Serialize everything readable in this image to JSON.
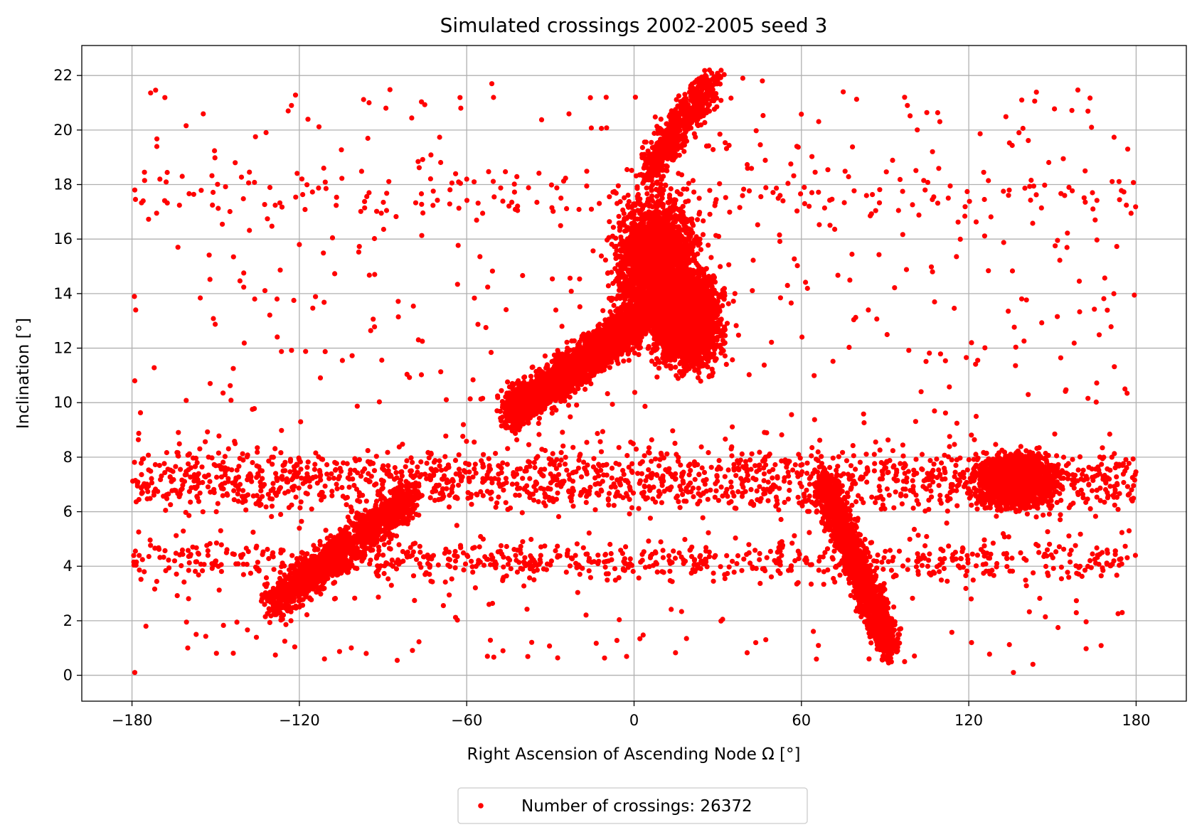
{
  "chart_data": {
    "type": "scatter",
    "title": "Simulated crossings  2002-2005 seed 3",
    "xlabel": "Right Ascension of Ascending Node Ω [°]",
    "ylabel": "Inclination [°]",
    "xlim": [
      -198,
      198
    ],
    "ylim": [
      -0.95,
      23.1
    ],
    "xticks": [
      -180,
      -120,
      -60,
      0,
      60,
      120,
      180
    ],
    "yticks": [
      0,
      2,
      4,
      6,
      8,
      10,
      12,
      14,
      16,
      18,
      20,
      22
    ],
    "xtick_labels": [
      "−180",
      "−120",
      "−60",
      "0",
      "60",
      "120",
      "180"
    ],
    "ytick_labels": [
      "0",
      "2",
      "4",
      "6",
      "8",
      "10",
      "12",
      "14",
      "16",
      "18",
      "20",
      "22"
    ],
    "grid": true,
    "marker_color": "#ff0000",
    "legend": {
      "position": "bottom-center",
      "label": "Number of crossings: 26372"
    },
    "series": [
      {
        "name": "Number of crossings: 26372",
        "color": "#ff0000",
        "note_total_count": 26372,
        "structures": [
          {
            "kind": "band",
            "x": [
              -180,
              180
            ],
            "y_center": 7.2,
            "y_spread": 0.9,
            "density": "high"
          },
          {
            "kind": "band",
            "x": [
              -180,
              180
            ],
            "y_center": 4.2,
            "y_spread": 0.6,
            "density": "medium"
          },
          {
            "kind": "band",
            "x": [
              -180,
              180
            ],
            "y_center": 17.6,
            "y_spread": 0.8,
            "density": "low"
          },
          {
            "kind": "arc",
            "from": [
              -130,
              2.6
            ],
            "to": [
              -80,
              6.5
            ],
            "density": "high"
          },
          {
            "kind": "arc",
            "from": [
              -45,
              9.6
            ],
            "to": [
              2,
              13.0
            ],
            "density": "very-high"
          },
          {
            "kind": "cluster",
            "x_center": 8,
            "y_center": 15.0,
            "x_spread": 12,
            "y_spread": 2.2,
            "density": "very-high"
          },
          {
            "kind": "cluster",
            "x_center": 20,
            "y_center": 13.0,
            "x_spread": 9,
            "y_spread": 1.4,
            "density": "very-high"
          },
          {
            "kind": "arc",
            "from": [
              5,
              18.5
            ],
            "to": [
              28,
              21.8
            ],
            "density": "medium"
          },
          {
            "kind": "arc",
            "from": [
              68,
              7.0
            ],
            "to": [
              92,
              1.0
            ],
            "density": "high"
          },
          {
            "kind": "cluster",
            "x_center": 137,
            "y_center": 7.1,
            "x_spread": 12,
            "y_spread": 0.8,
            "density": "high"
          }
        ],
        "sample_points": [
          [
            -179,
            0.1
          ],
          [
            -111,
            0.6
          ],
          [
            -47,
            0.9
          ],
          [
            97,
            0.5
          ],
          [
            136,
            0.1
          ],
          [
            143,
            0.4
          ],
          [
            -160,
            1.0
          ],
          [
            -157,
            1.5
          ],
          [
            -52,
            2.6
          ],
          [
            -123,
            2.0
          ],
          [
            -175,
            1.8
          ],
          [
            -124,
            20.7
          ],
          [
            -51,
            21.7
          ],
          [
            -10,
            21.2
          ],
          [
            39,
            21.9
          ],
          [
            46,
            21.8
          ],
          [
            97,
            21.2
          ],
          [
            139,
            21.1
          ],
          [
            -95,
            21.0
          ],
          [
            75,
            21.4
          ],
          [
            -179,
            10.8
          ],
          [
            121,
            12.2
          ],
          [
            121,
            1.2
          ],
          [
            176,
            10.5
          ],
          [
            -128,
            13.8
          ],
          [
            -136,
            13.8
          ],
          [
            -179,
            17.8
          ],
          [
            -176,
            17.4
          ],
          [
            -162,
            18.3
          ],
          [
            -143,
            18.8
          ],
          [
            -95,
            17.7
          ],
          [
            -60,
            18.2
          ],
          [
            164,
            20.1
          ],
          [
            177,
            19.3
          ],
          [
            138,
            19.9
          ],
          [
            98,
            20.9
          ],
          [
            -93,
            14.7
          ],
          [
            -120,
            15.8
          ],
          [
            55,
            14.3
          ],
          [
            84,
            13.4
          ],
          [
            107,
            14.8
          ],
          [
            175,
            2.3
          ],
          [
            -87,
            3.3
          ]
        ]
      }
    ]
  }
}
